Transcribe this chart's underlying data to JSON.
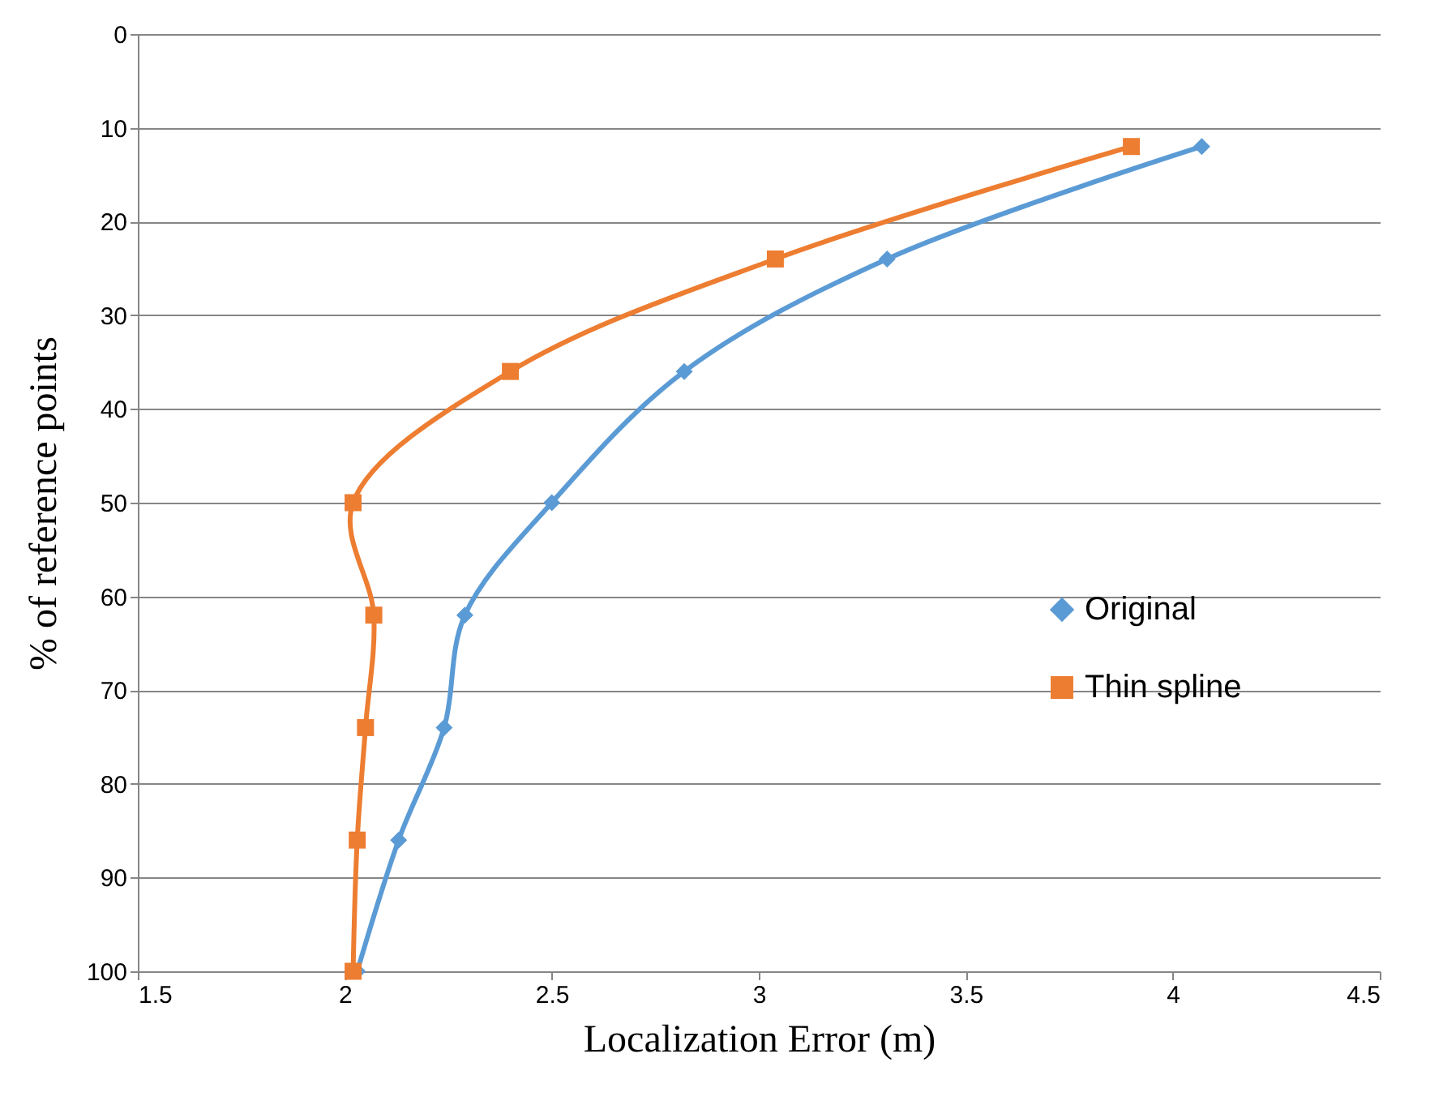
{
  "chart_data": {
    "type": "line",
    "xlabel": "Localization Error (m)",
    "ylabel": "% of reference points",
    "series": [
      {
        "name": "Original",
        "color": "#5b9bd5",
        "marker": "diamond",
        "x": [
          4.07,
          3.31,
          2.82,
          2.5,
          2.29,
          2.24,
          2.13,
          2.03
        ],
        "values": [
          12,
          24,
          36,
          50,
          62,
          74,
          86,
          100
        ]
      },
      {
        "name": "Thin spline",
        "color": "#ed7d31",
        "marker": "square",
        "x": [
          3.9,
          3.04,
          2.4,
          2.02,
          2.07,
          2.05,
          2.03,
          2.02
        ],
        "values": [
          12,
          24,
          36,
          50,
          62,
          74,
          86,
          100
        ]
      }
    ],
    "xlim": [
      1.5,
      4.5
    ],
    "xticks": [
      1.5,
      2,
      2.5,
      3,
      3.5,
      4,
      4.5
    ],
    "ylim": [
      100,
      0
    ],
    "yticks": [
      0,
      10,
      20,
      30,
      40,
      50,
      60,
      70,
      80,
      90,
      100
    ],
    "grid": "y",
    "legend": "right",
    "line_style": "solid"
  }
}
